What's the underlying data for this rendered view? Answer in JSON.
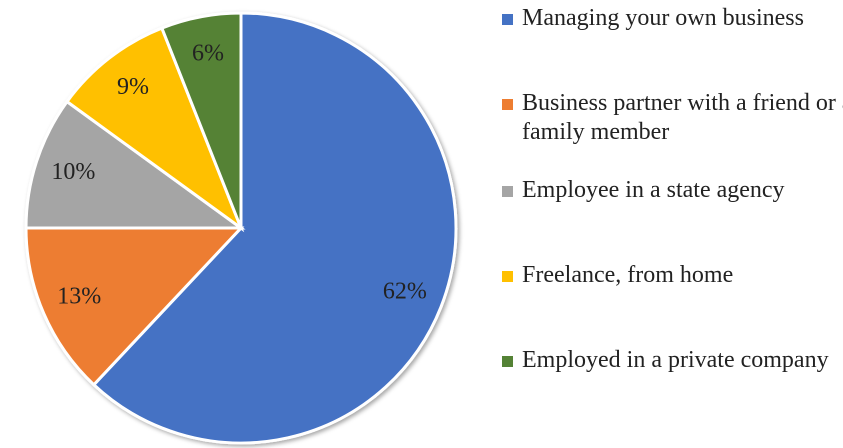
{
  "chart_data": {
    "type": "pie",
    "categories": [
      "Managing your own business",
      "Business partner with a friend or a family member",
      "Employee in a state agency",
      "Freelance, from home",
      "Employed in a private company"
    ],
    "values": [
      62,
      13,
      10,
      9,
      6
    ],
    "value_labels": [
      "62%",
      "13%",
      "10%",
      "9%",
      "6%"
    ],
    "colors": [
      "#4472c4",
      "#ed7d31",
      "#a5a5a5",
      "#ffc000",
      "#548235"
    ],
    "legend": "right"
  }
}
